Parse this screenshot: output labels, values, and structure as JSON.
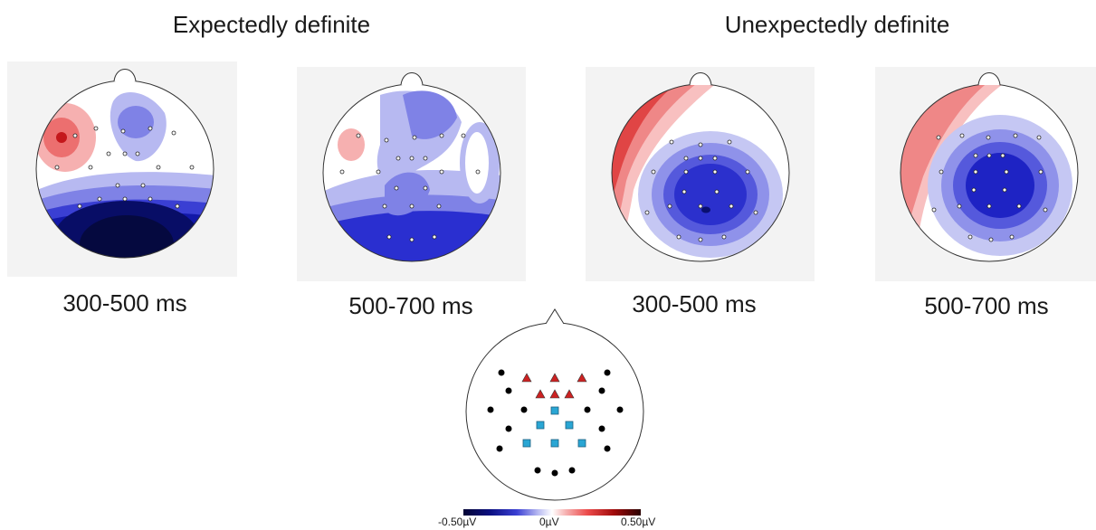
{
  "groups": {
    "expected": {
      "title": "Expectedly definite"
    },
    "unexpected": {
      "title": "Unexpectedly definite"
    }
  },
  "maps": [
    {
      "label": "300-500 ms"
    },
    {
      "label": "500-700 ms"
    },
    {
      "label": "300-500 ms"
    },
    {
      "label": "500-700 ms"
    }
  ],
  "colorbar": {
    "min_label": "-0.50µV",
    "mid_label": "0µV",
    "max_label": "0.50µV",
    "min_color": "#050535",
    "mid_color": "#ffffff",
    "max_color": "#2a0000"
  },
  "legend_markers": {
    "anterior_color": "#cc2222",
    "posterior_color": "#2aa6d4",
    "other_color": "#000000"
  }
}
